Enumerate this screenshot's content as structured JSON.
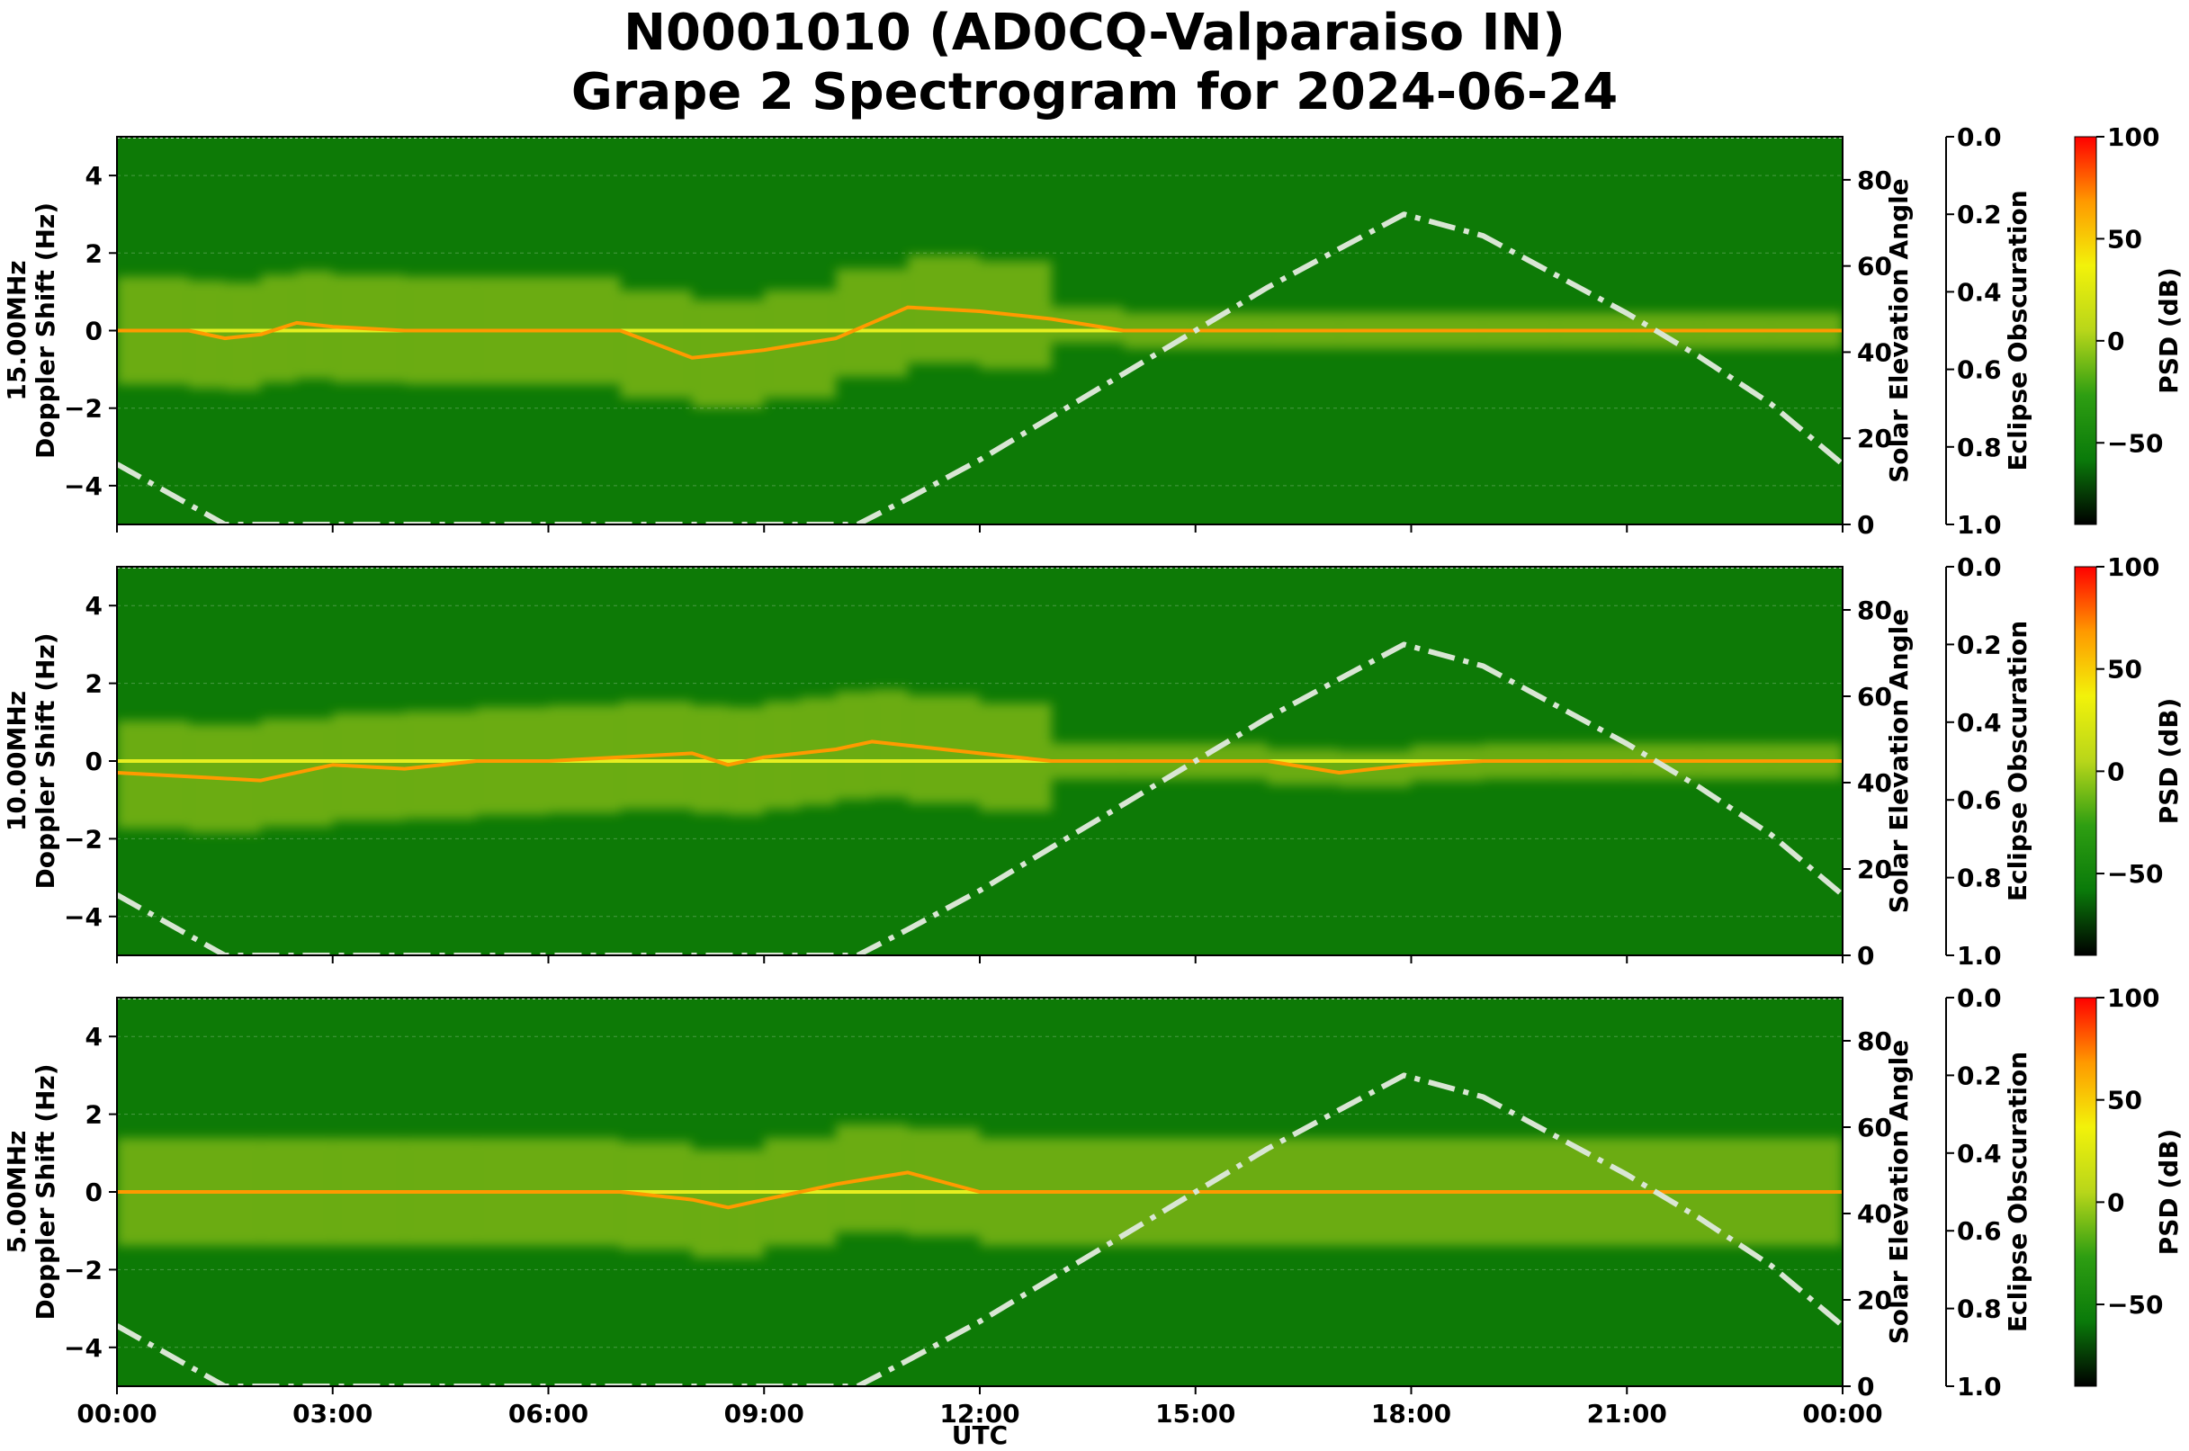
{
  "figure": {
    "title_line1": "N0001010 (AD0CQ-Valparaiso IN)",
    "title_line2": "Grape 2 Spectrogram for 2024-06-24",
    "xlabel": "UTC"
  },
  "colors": {
    "background_green": "#0d7a06",
    "solar_curve": "#d9e6d4",
    "colormap": [
      "#000000",
      "#0a7a0a",
      "#2e9e12",
      "#b8d61a",
      "#f2f20a",
      "#ff9900",
      "#ff0000"
    ]
  },
  "chart_data": [
    {
      "type": "heatmap",
      "panel_label": "15.00MHz",
      "ylabel": "Doppler Shift (Hz)",
      "ylim": [
        -5,
        5
      ],
      "yticks": [
        "4",
        "2",
        "0",
        "−2",
        "−4"
      ],
      "xlim_hours": [
        0,
        24
      ],
      "xticks": [
        "00:00",
        "03:00",
        "06:00",
        "09:00",
        "12:00",
        "15:00",
        "18:00",
        "21:00",
        "00:00"
      ],
      "right_axis_1": {
        "label": "Solar Elevation Angle",
        "ylim": [
          0,
          90
        ],
        "ticks": [
          "0",
          "20",
          "40",
          "60",
          "80"
        ]
      },
      "right_axis_2": {
        "label": "Eclipse Obscuration",
        "ylim": [
          1.0,
          0.0
        ],
        "ticks": [
          "0.0",
          "0.2",
          "0.4",
          "0.6",
          "0.8",
          "1.0"
        ]
      },
      "colorbar": {
        "label": "PSD (dB)",
        "range": [
          -90,
          100
        ],
        "ticks": [
          "100",
          "50",
          "0",
          "−50"
        ]
      },
      "solar_elevation_curve": {
        "x_hours": [
          0,
          1.5,
          10.3,
          11,
          12,
          13,
          14,
          15,
          16,
          17,
          17.9,
          19,
          20,
          21,
          22,
          23,
          24
        ],
        "elevation_deg": [
          14,
          0,
          0,
          6,
          15,
          25,
          35,
          45,
          55,
          64,
          72,
          67,
          58,
          49,
          39,
          28,
          14
        ]
      },
      "doppler_trace": {
        "x_hours": [
          0,
          1,
          1.5,
          2,
          2.5,
          3,
          4,
          5,
          6,
          7,
          8,
          9,
          10,
          11,
          12,
          13,
          14,
          15,
          16,
          17,
          18,
          19,
          20,
          21,
          22,
          23,
          24
        ],
        "doppler_hz": [
          0,
          0,
          -0.2,
          -0.1,
          0.2,
          0.1,
          0,
          0,
          0,
          0,
          -0.7,
          -0.5,
          -0.2,
          0.6,
          0.5,
          0.3,
          0,
          0,
          0,
          0,
          0,
          0,
          0,
          0,
          0,
          0,
          0
        ]
      }
    },
    {
      "type": "heatmap",
      "panel_label": "10.00MHz",
      "ylabel": "Doppler Shift (Hz)",
      "ylim": [
        -5,
        5
      ],
      "yticks": [
        "4",
        "2",
        "0",
        "−2",
        "−4"
      ],
      "xlim_hours": [
        0,
        24
      ],
      "xticks": [
        "00:00",
        "03:00",
        "06:00",
        "09:00",
        "12:00",
        "15:00",
        "18:00",
        "21:00",
        "00:00"
      ],
      "right_axis_1": {
        "label": "Solar Elevation Angle",
        "ylim": [
          0,
          90
        ],
        "ticks": [
          "0",
          "20",
          "40",
          "60",
          "80"
        ]
      },
      "right_axis_2": {
        "label": "Eclipse Obscuration",
        "ylim": [
          1.0,
          0.0
        ],
        "ticks": [
          "0.0",
          "0.2",
          "0.4",
          "0.6",
          "0.8",
          "1.0"
        ]
      },
      "colorbar": {
        "label": "PSD (dB)",
        "range": [
          -90,
          100
        ],
        "ticks": [
          "100",
          "50",
          "0",
          "−50"
        ]
      },
      "solar_elevation_curve": {
        "x_hours": [
          0,
          1.5,
          10.3,
          11,
          12,
          13,
          14,
          15,
          16,
          17,
          17.9,
          19,
          20,
          21,
          22,
          23,
          24
        ],
        "elevation_deg": [
          14,
          0,
          0,
          6,
          15,
          25,
          35,
          45,
          55,
          64,
          72,
          67,
          58,
          49,
          39,
          28,
          14
        ]
      },
      "doppler_trace": {
        "x_hours": [
          0,
          1,
          2,
          3,
          4,
          5,
          6,
          7,
          8,
          8.5,
          9,
          9.5,
          10,
          10.5,
          11,
          12,
          13,
          14,
          15,
          16,
          17,
          18,
          19,
          20,
          21,
          22,
          23,
          24
        ],
        "doppler_hz": [
          -0.3,
          -0.4,
          -0.5,
          -0.1,
          -0.2,
          0,
          0,
          0.1,
          0.2,
          -0.1,
          0.1,
          0.2,
          0.3,
          0.5,
          0.4,
          0.2,
          0,
          0,
          0,
          0,
          -0.3,
          -0.1,
          0,
          0,
          0,
          0,
          0,
          0
        ]
      }
    },
    {
      "type": "heatmap",
      "panel_label": "5.00MHz",
      "ylabel": "Doppler Shift (Hz)",
      "ylim": [
        -5,
        5
      ],
      "yticks": [
        "4",
        "2",
        "0",
        "−2",
        "−4"
      ],
      "xlim_hours": [
        0,
        24
      ],
      "xticks": [
        "00:00",
        "03:00",
        "06:00",
        "09:00",
        "12:00",
        "15:00",
        "18:00",
        "21:00",
        "00:00"
      ],
      "right_axis_1": {
        "label": "Solar Elevation Angle",
        "ylim": [
          0,
          90
        ],
        "ticks": [
          "0",
          "20",
          "40",
          "60",
          "80"
        ]
      },
      "right_axis_2": {
        "label": "Eclipse Obscuration",
        "ylim": [
          1.0,
          0.0
        ],
        "ticks": [
          "0.0",
          "0.2",
          "0.4",
          "0.6",
          "0.8",
          "1.0"
        ]
      },
      "colorbar": {
        "label": "PSD (dB)",
        "range": [
          -90,
          100
        ],
        "ticks": [
          "100",
          "50",
          "0",
          "−50"
        ]
      },
      "solar_elevation_curve": {
        "x_hours": [
          0,
          1.5,
          10.3,
          11,
          12,
          13,
          14,
          15,
          16,
          17,
          17.9,
          19,
          20,
          21,
          22,
          23,
          24
        ],
        "elevation_deg": [
          14,
          0,
          0,
          6,
          15,
          25,
          35,
          45,
          55,
          64,
          72,
          67,
          58,
          49,
          39,
          28,
          14
        ]
      },
      "doppler_trace": {
        "x_hours": [
          0,
          2,
          3,
          4,
          5,
          6,
          7,
          8,
          8.5,
          9,
          10,
          11,
          12,
          24
        ],
        "doppler_hz": [
          0,
          0,
          0,
          0,
          0,
          0,
          0,
          -0.2,
          -0.4,
          -0.2,
          0.2,
          0.5,
          0,
          0
        ]
      }
    }
  ]
}
